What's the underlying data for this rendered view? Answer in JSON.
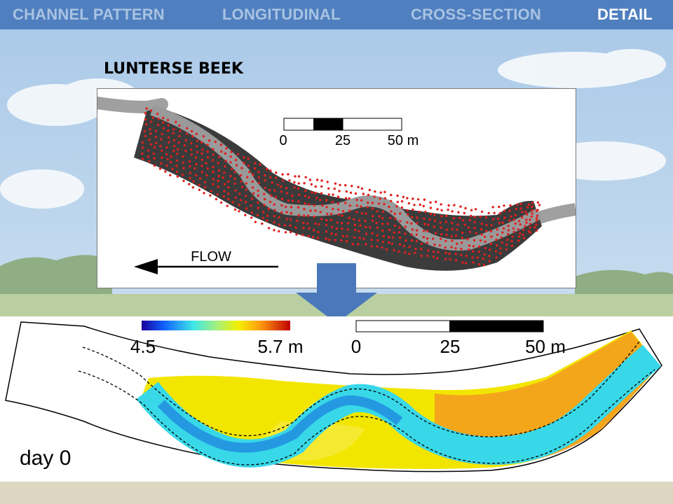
{
  "nav": {
    "channel_pattern": "CHANNEL PATTERN",
    "longitudinal": "LONGITUDINAL",
    "cross_section": "CROSS-SECTION",
    "detail": "DETAIL"
  },
  "title": "LUNTERSE BEEK",
  "survey_panel": {
    "scale_labels": [
      "0",
      "25",
      "50 m"
    ],
    "flow_label": "FLOW"
  },
  "model_panel": {
    "colorbar_min": "4.5",
    "colorbar_max": "5.7 m",
    "scale_labels": [
      "0",
      "25",
      "50 m"
    ],
    "time_label": "day 0"
  },
  "colors": {
    "nav_bar": "#4f7fbf",
    "nav_inactive": "#a9c3e2",
    "nav_active": "#ffffff",
    "arrow": "#4a78bb",
    "survey_points": "#e02020",
    "channel_dark": "#3a3a3a",
    "channel_gray": "#9a9a9a"
  }
}
